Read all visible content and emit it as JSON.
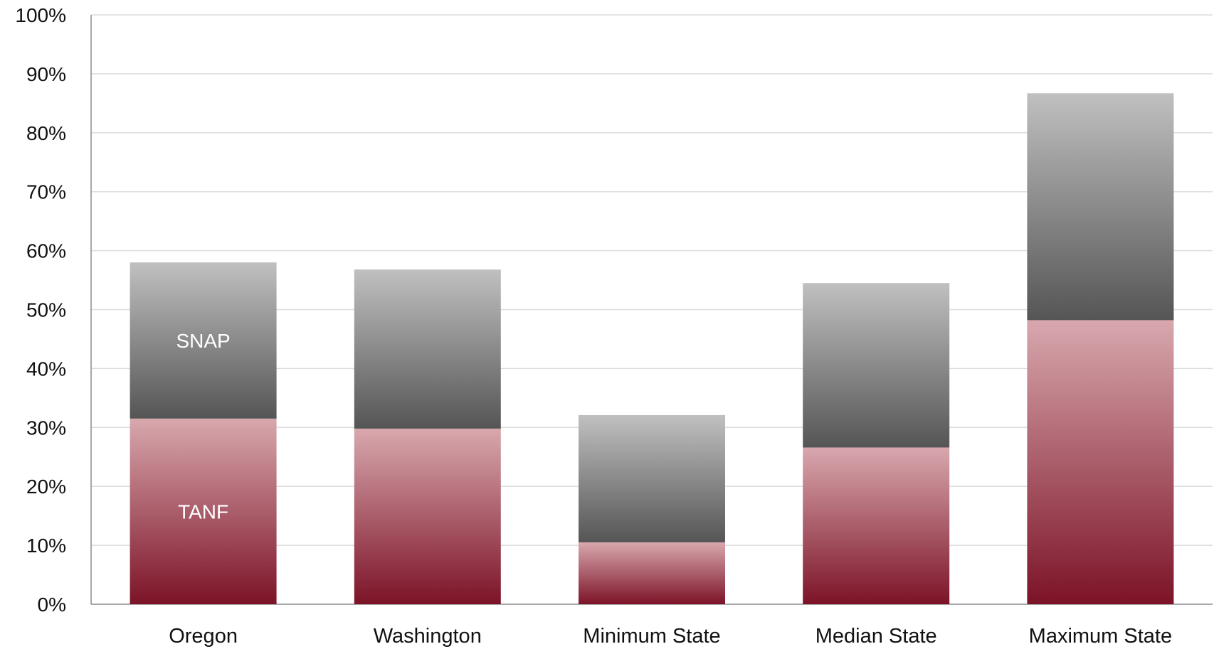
{
  "chart_data": {
    "type": "bar",
    "stacked": true,
    "categories": [
      "Oregon",
      "Washington",
      "Minimum State",
      "Median State",
      "Maximum State"
    ],
    "series": [
      {
        "name": "TANF",
        "values": [
          31.5,
          29.8,
          10.5,
          26.6,
          48.2
        ],
        "color_top": "#d8a8ae",
        "color_bottom": "#7c1327"
      },
      {
        "name": "SNAP",
        "values": [
          26.5,
          27.0,
          21.6,
          27.9,
          38.5
        ],
        "color_top": "#c0c0c0",
        "color_bottom": "#555555"
      }
    ],
    "ylim": [
      0,
      100
    ],
    "yticks": [
      0,
      10,
      20,
      30,
      40,
      50,
      60,
      70,
      80,
      90,
      100
    ],
    "ytick_suffix": "%",
    "grid": true,
    "grid_color": "#dcdcdc",
    "series_labels_on": "Oregon",
    "title": "",
    "xlabel": "",
    "ylabel": ""
  }
}
